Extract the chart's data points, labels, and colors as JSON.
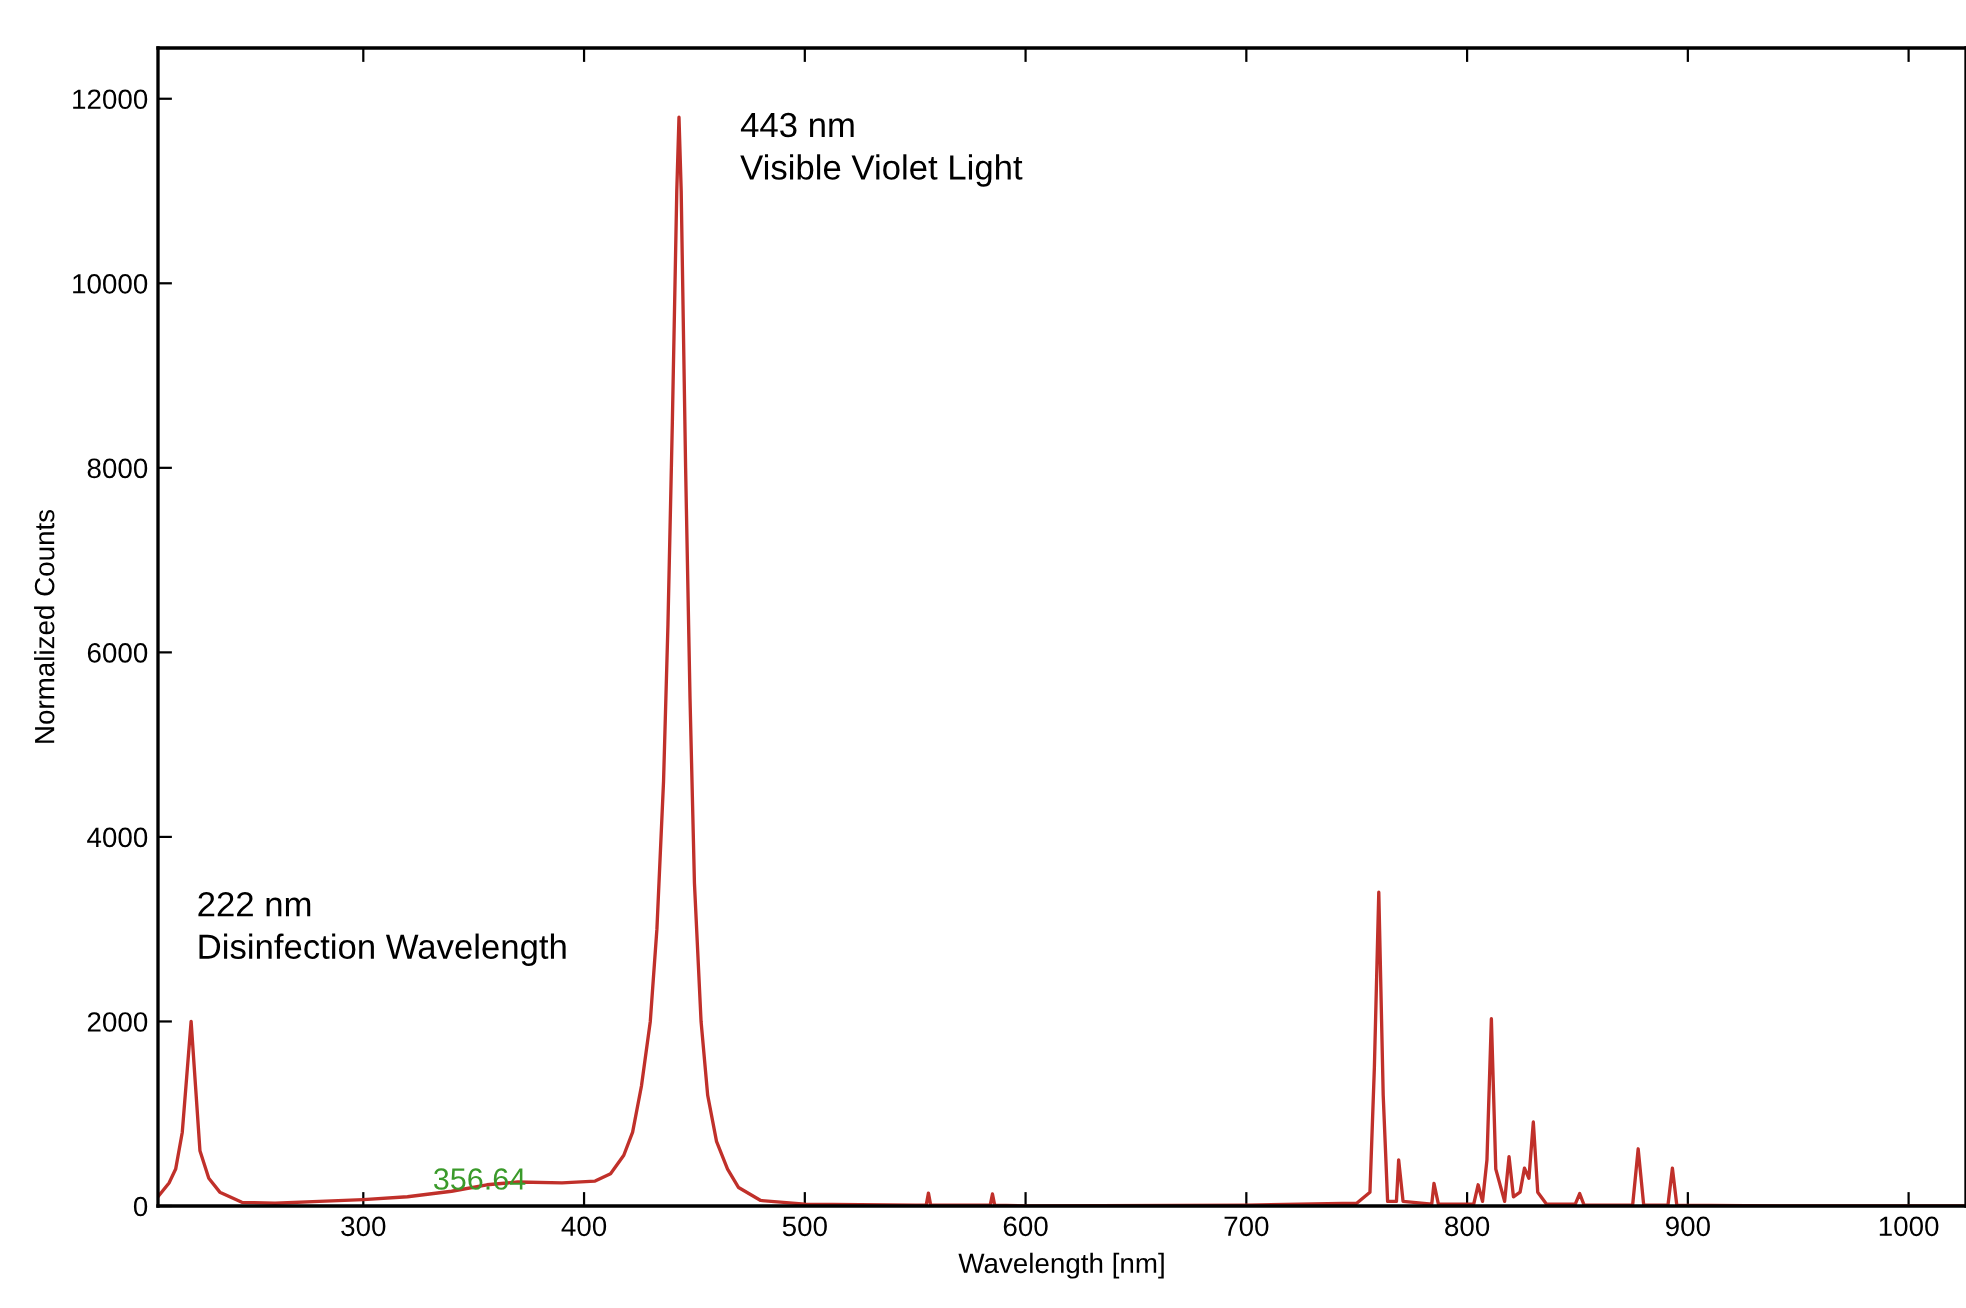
{
  "chart_data": {
    "type": "line",
    "xlabel": "Wavelength [nm]",
    "ylabel": "Normalized Counts",
    "xlim": [
      207,
      1026
    ],
    "ylim": [
      0,
      12550
    ],
    "xticks": [
      300,
      400,
      500,
      600,
      700,
      800,
      900,
      1000
    ],
    "yticks": [
      0,
      2000,
      4000,
      6000,
      8000,
      10000,
      12000
    ],
    "grid": false,
    "marker": "none",
    "line_style": "solid",
    "series": [
      {
        "color": "#c0302a",
        "x": [
          207,
          212,
          215,
          218,
          220,
          222,
          224,
          226,
          230,
          235,
          245,
          260,
          280,
          300,
          320,
          340,
          356,
          370,
          390,
          405,
          412,
          418,
          422,
          426,
          430,
          433,
          436,
          438,
          440,
          442,
          443,
          444,
          446,
          448,
          450,
          453,
          456,
          460,
          465,
          470,
          480,
          500,
          550,
          555,
          556,
          557,
          584,
          585,
          586,
          600,
          700,
          750,
          756,
          758,
          760,
          762,
          764,
          768,
          769,
          771,
          784,
          785,
          787,
          803,
          805,
          807,
          809,
          811,
          813,
          817,
          819,
          821,
          824,
          826,
          828,
          830,
          832,
          836,
          849,
          851,
          853,
          875,
          877.5,
          880,
          891,
          893,
          895,
          950,
          1026
        ],
        "values": [
          100,
          250,
          400,
          800,
          1400,
          2000,
          1300,
          600,
          300,
          150,
          40,
          30,
          50,
          70,
          100,
          160,
          230,
          260,
          250,
          270,
          350,
          550,
          800,
          1300,
          2000,
          3000,
          4600,
          6300,
          8500,
          11000,
          11800,
          11000,
          8000,
          5500,
          3500,
          2000,
          1200,
          700,
          400,
          200,
          60,
          20,
          10,
          10,
          140,
          10,
          10,
          130,
          10,
          0,
          10,
          30,
          150,
          1500,
          3400,
          1200,
          50,
          50,
          500,
          50,
          20,
          245,
          20,
          20,
          230,
          50,
          500,
          2030,
          400,
          50,
          535,
          100,
          150,
          410,
          300,
          910,
          150,
          20,
          20,
          135,
          10,
          10,
          620,
          10,
          10,
          410,
          10,
          0,
          0
        ]
      }
    ],
    "annotations": [
      {
        "text": "222 nm\nDisinfection Wavelength",
        "x": 222,
        "y": 2000
      },
      {
        "text": "443 nm\nVisible Violet Light",
        "x": 443,
        "y": 11800
      },
      {
        "text": "356.64",
        "x": 356.64,
        "y": 230
      }
    ]
  }
}
